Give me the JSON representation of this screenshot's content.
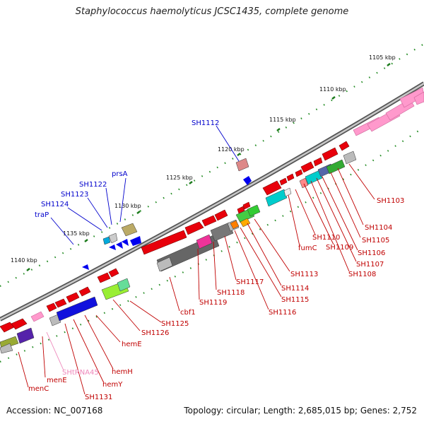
{
  "title": "Staphylococcus haemolyticus JCSC1435, complete genome",
  "footer": {
    "accession": "Accession: NC_007168",
    "summary": "Topology: circular; Length: 2,685,015 bp; Genes: 2,752"
  },
  "colors": {
    "forward": "#e8000b",
    "reverse": "#0000e8",
    "rna": "#ff99cc",
    "backbone": "#8a8a8a",
    "ticks": "#228b22"
  },
  "kbp_labels": [
    "1105 kbp",
    "1110 kbp",
    "1115 kbp",
    "1120 kbp",
    "1125 kbp",
    "1130 kbp",
    "1135 kbp",
    "1140 kbp"
  ],
  "gene_labels": {
    "sh1103": "SH1103",
    "sh1104": "SH1104",
    "sh1105": "SH1105",
    "sh1106": "SH1106",
    "sh1107": "SH1107",
    "sh1108": "SH1108",
    "sh1109": "SH1109",
    "sh1110": "SH1110",
    "fumc": "fumC",
    "sh1113": "SH1113",
    "sh1114": "SH1114",
    "sh1115": "SH1115",
    "sh1116": "SH1116",
    "sh1117": "SH1117",
    "sh1118": "SH1118",
    "sh1119": "SH1119",
    "cbf1": "cbf1",
    "sh1125": "SH1125",
    "sh1126": "SH1126",
    "heme": "hemE",
    "hemh": "hemH",
    "hemy": "hemY",
    "sh1131": "SH1131",
    "shtrna45": "SHtRNA45",
    "mene": "menE",
    "menc": "menC",
    "sh1112": "SH1112",
    "prsa": "prsA",
    "sh1122": "SH1122",
    "sh1123": "SH1123",
    "sh1124": "SH1124",
    "trap": "traP"
  }
}
